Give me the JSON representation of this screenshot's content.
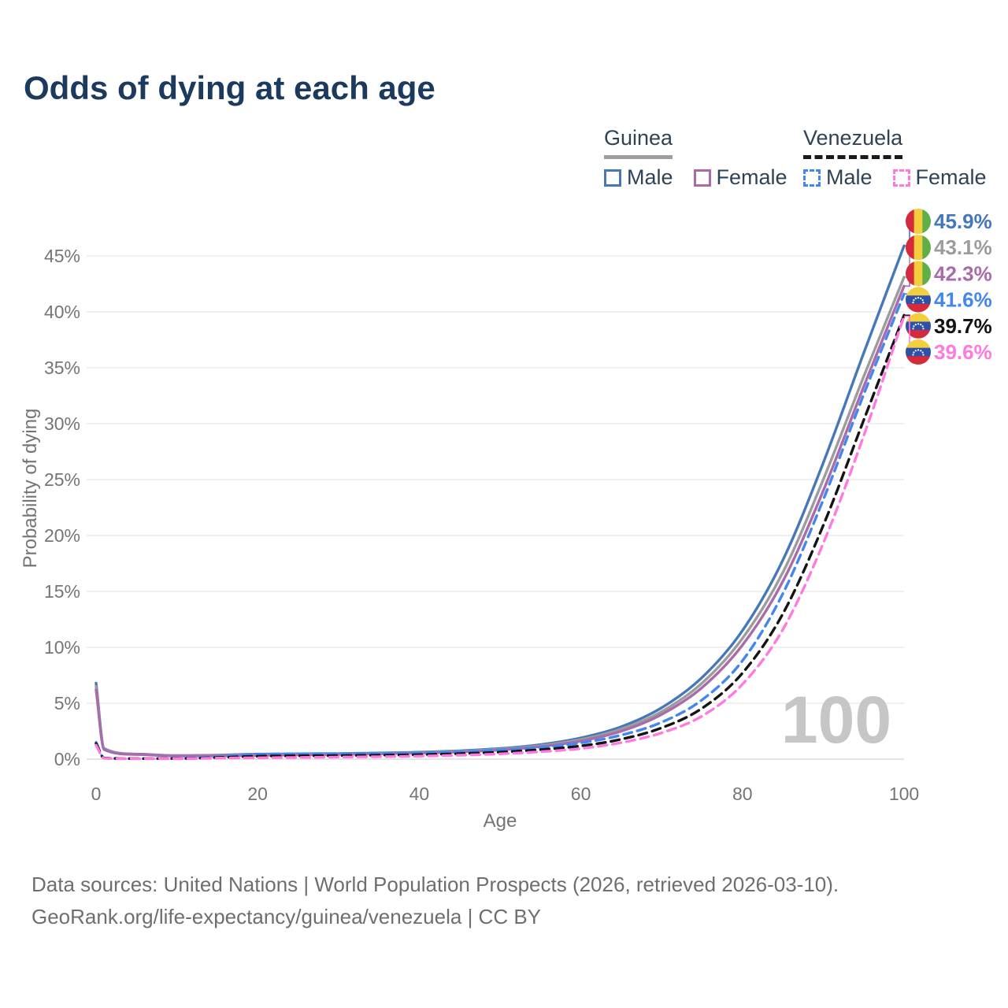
{
  "header": {
    "title": "Odds of dying at each age"
  },
  "legend": {
    "groups": [
      {
        "country": "Guinea",
        "line_style": "solid",
        "underline_color": "#9E9E9E",
        "items": [
          {
            "label": "Male",
            "color": "#4678B9"
          },
          {
            "label": "Female",
            "color": "#A96BA9"
          }
        ]
      },
      {
        "country": "Venezuela",
        "line_style": "dashed",
        "underline_color": "#1A1A1A",
        "items": [
          {
            "label": "Male",
            "color": "#4486F0"
          },
          {
            "label": "Female",
            "color": "#FF7ADF"
          }
        ]
      }
    ]
  },
  "chart_data": {
    "type": "line",
    "title": "Odds of dying at each age",
    "xlabel": "Age",
    "ylabel": "Probability of dying",
    "xlim": [
      0,
      100
    ],
    "ylim": [
      0,
      48
    ],
    "x_ticks": [
      0,
      20,
      40,
      60,
      80,
      100
    ],
    "y_ticks_percent": [
      0,
      5,
      10,
      15,
      20,
      25,
      30,
      35,
      40,
      45
    ],
    "grid": true,
    "legend_position": "top-right",
    "watermark": "100",
    "axis_text_color": "#757575",
    "grid_color": "#EBEBEB",
    "zero_line_color": "#DCDCDC",
    "watermark_color": "#C6C6C6",
    "x": [
      0,
      1,
      5,
      10,
      15,
      20,
      25,
      30,
      35,
      40,
      45,
      50,
      55,
      60,
      65,
      70,
      75,
      80,
      85,
      90,
      95,
      100
    ],
    "series": [
      {
        "name": "Guinea Male",
        "flag": "guinea",
        "color": "#4678B9",
        "dash": false,
        "end_label": "45.9%",
        "values": [
          6.8,
          0.95,
          0.45,
          0.32,
          0.36,
          0.45,
          0.48,
          0.5,
          0.55,
          0.62,
          0.75,
          0.95,
          1.3,
          1.9,
          2.9,
          4.6,
          7.3,
          11.5,
          17.8,
          26.5,
          36.3,
          45.9
        ]
      },
      {
        "name": "Guinea Both sexes",
        "flag": "guinea",
        "color": "#9C9C9C",
        "dash": false,
        "end_label": "43.1%",
        "values": [
          6.5,
          0.9,
          0.43,
          0.3,
          0.32,
          0.4,
          0.43,
          0.46,
          0.51,
          0.58,
          0.7,
          0.88,
          1.2,
          1.75,
          2.7,
          4.25,
          6.8,
          10.8,
          16.7,
          25.0,
          34.2,
          43.1
        ]
      },
      {
        "name": "Guinea Female",
        "flag": "guinea",
        "color": "#A96BA9",
        "dash": false,
        "end_label": "42.3%",
        "values": [
          6.2,
          0.85,
          0.42,
          0.28,
          0.29,
          0.34,
          0.38,
          0.42,
          0.47,
          0.54,
          0.64,
          0.82,
          1.12,
          1.62,
          2.5,
          4.0,
          6.4,
          10.2,
          15.9,
          24.0,
          33.3,
          42.3
        ]
      },
      {
        "name": "Venezuela Male",
        "flag": "venezuela",
        "color": "#4486F0",
        "dash": true,
        "end_label": "41.6%",
        "values": [
          1.5,
          0.1,
          0.05,
          0.06,
          0.2,
          0.42,
          0.47,
          0.48,
          0.5,
          0.55,
          0.65,
          0.82,
          1.05,
          1.45,
          2.15,
          3.3,
          5.3,
          8.8,
          14.8,
          23.2,
          32.6,
          41.6
        ]
      },
      {
        "name": "Venezuela Both sexes",
        "flag": "venezuela",
        "color": "#141414",
        "dash": true,
        "end_label": "39.7%",
        "values": [
          1.4,
          0.09,
          0.05,
          0.05,
          0.14,
          0.26,
          0.3,
          0.32,
          0.35,
          0.4,
          0.49,
          0.63,
          0.85,
          1.18,
          1.78,
          2.8,
          4.55,
          7.7,
          13.0,
          20.9,
          30.3,
          39.7
        ]
      },
      {
        "name": "Venezuela Female",
        "flag": "venezuela",
        "color": "#FF7ADF",
        "dash": true,
        "end_label": "39.6%",
        "values": [
          1.25,
          0.08,
          0.04,
          0.04,
          0.09,
          0.12,
          0.15,
          0.18,
          0.22,
          0.27,
          0.35,
          0.47,
          0.66,
          0.95,
          1.48,
          2.35,
          3.85,
          6.7,
          11.6,
          19.3,
          28.9,
          39.6
        ]
      }
    ],
    "flags": {
      "guinea": {
        "type": "vertical",
        "colors": [
          "#D42A3C",
          "#F5CE3E",
          "#5FAE46"
        ]
      },
      "venezuela": {
        "type": "horizontal",
        "colors": [
          "#F5CE3E",
          "#2B52A8",
          "#D42A3C"
        ],
        "stars": "#FFFFFF"
      }
    }
  },
  "footer": {
    "line1": "Data sources: United Nations | World Population Prospects (2026, retrieved 2026-03-10).",
    "line2": "GeoRank.org/life-expectancy/guinea/venezuela | CC BY"
  }
}
